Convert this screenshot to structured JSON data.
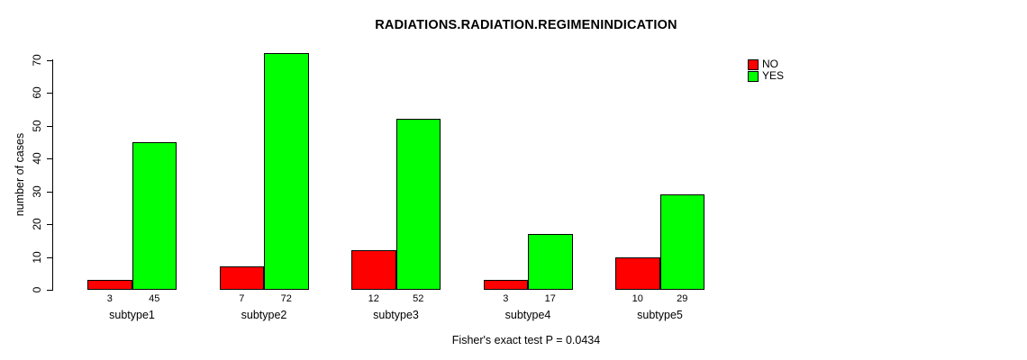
{
  "title": "RADIATIONS.RADIATION.REGIMENINDICATION",
  "ylabel": "number of cases",
  "footer": "Fisher's exact test P = 0.0434",
  "legend": {
    "items": [
      {
        "label": "NO",
        "color": "#ff0000"
      },
      {
        "label": "YES",
        "color": "#00ff00"
      }
    ]
  },
  "chart_data": {
    "type": "bar",
    "title": "RADIATIONS.RADIATION.REGIMENINDICATION",
    "categories": [
      "subtype1",
      "subtype2",
      "subtype3",
      "subtype4",
      "subtype5"
    ],
    "series": [
      {
        "name": "NO",
        "color": "#ff0000",
        "values": [
          3,
          7,
          12,
          3,
          10
        ]
      },
      {
        "name": "YES",
        "color": "#00ff00",
        "values": [
          45,
          72,
          52,
          17,
          29
        ]
      }
    ],
    "xlabel": "",
    "ylabel": "number of cases",
    "ylim": [
      0,
      70
    ],
    "yticks": [
      0,
      10,
      20,
      30,
      40,
      50,
      60,
      70
    ],
    "bar_value_labels": true,
    "grid": false,
    "legend_position": "top-right",
    "annotation": "Fisher's exact test P = 0.0434"
  }
}
